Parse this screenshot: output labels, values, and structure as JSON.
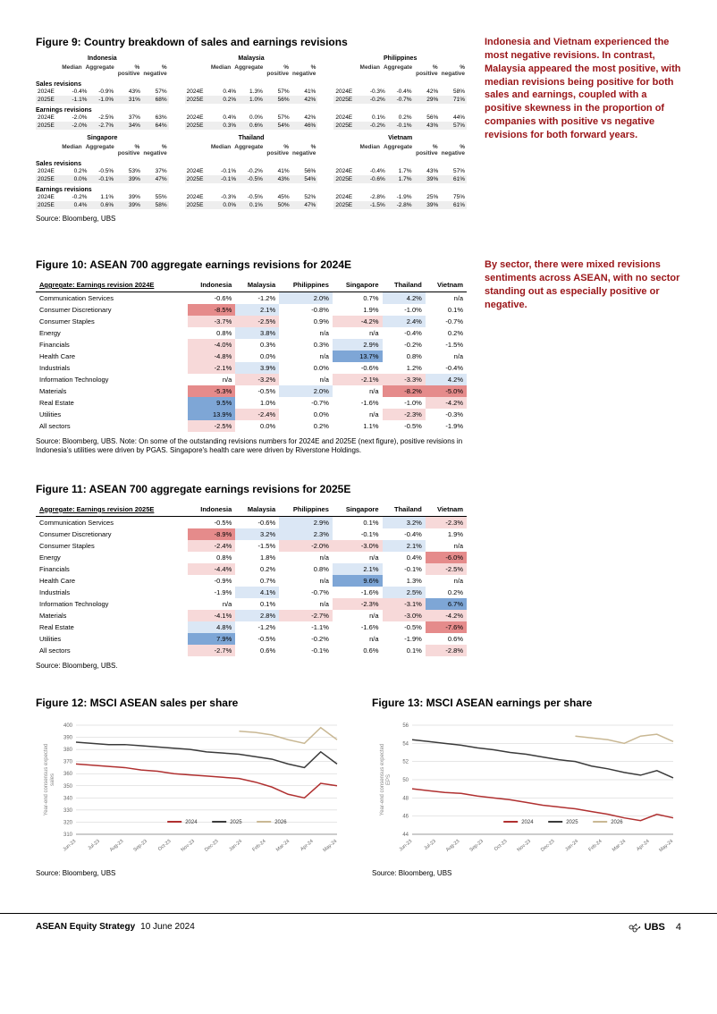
{
  "colors": {
    "sidebar_text": "#9a1518",
    "pos_light": "#dbe7f5",
    "pos_dark": "#7ea6d6",
    "neg_light": "#f7d9d9",
    "neg_dark": "#e58b8b",
    "chart_2024": "#b03030",
    "chart_2025": "#3a3a3a",
    "chart_2026": "#c9b894",
    "grid": "#cccccc",
    "axis_text": "#666666",
    "ylabel": "#888888"
  },
  "sidebar": {
    "note1": "Indonesia and Vietnam experienced the most negative revisions. In contrast, Malaysia appeared the most positive, with median revisions being positive for both sales and earnings, coupled with a positive skewness in the proportion of companies with positive vs negative revisions for both forward years.",
    "note2": "By sector, there were mixed revisions sentiments across ASEAN, with no sector standing out as especially positive or negative."
  },
  "fig9": {
    "title": "Figure 9: Country breakdown of sales and earnings revisions",
    "col_headers": [
      "Median",
      "Aggregate",
      "% positive",
      "% negative"
    ],
    "source": "Source: Bloomberg, UBS",
    "rows_a": {
      "countries": [
        "Indonesia",
        "Malaysia",
        "Philippines"
      ],
      "sales_label": "Sales revisions",
      "earnings_label": "Earnings revisions",
      "sales": {
        "2024E": [
          [
            "-0.4%",
            "-0.9%",
            "43%",
            "57%"
          ],
          [
            "0.4%",
            "1.3%",
            "57%",
            "41%"
          ],
          [
            "-0.3%",
            "-0.4%",
            "42%",
            "58%"
          ]
        ],
        "2025E": [
          [
            "-1.1%",
            "-1.0%",
            "31%",
            "68%"
          ],
          [
            "0.2%",
            "1.0%",
            "56%",
            "42%"
          ],
          [
            "-0.2%",
            "-0.7%",
            "29%",
            "71%"
          ]
        ]
      },
      "earnings": {
        "2024E": [
          [
            "-2.0%",
            "-2.5%",
            "37%",
            "63%"
          ],
          [
            "0.4%",
            "0.0%",
            "57%",
            "42%"
          ],
          [
            "0.1%",
            "0.2%",
            "56%",
            "44%"
          ]
        ],
        "2025E": [
          [
            "-2.0%",
            "-2.7%",
            "34%",
            "64%"
          ],
          [
            "0.3%",
            "0.6%",
            "54%",
            "46%"
          ],
          [
            "-0.2%",
            "-0.1%",
            "43%",
            "57%"
          ]
        ]
      }
    },
    "rows_b": {
      "countries": [
        "Singapore",
        "Thailand",
        "Vietnam"
      ],
      "sales": {
        "2024E": [
          [
            "0.2%",
            "-0.5%",
            "53%",
            "37%"
          ],
          [
            "-0.1%",
            "-0.2%",
            "41%",
            "56%"
          ],
          [
            "-0.4%",
            "1.7%",
            "43%",
            "57%"
          ]
        ],
        "2025E": [
          [
            "0.0%",
            "-0.1%",
            "39%",
            "47%"
          ],
          [
            "-0.1%",
            "-0.5%",
            "43%",
            "54%"
          ],
          [
            "-0.6%",
            "1.7%",
            "39%",
            "61%"
          ]
        ]
      },
      "earnings": {
        "2024E": [
          [
            "-0.2%",
            "1.1%",
            "39%",
            "55%"
          ],
          [
            "-0.3%",
            "-0.5%",
            "45%",
            "52%"
          ],
          [
            "-2.8%",
            "-1.9%",
            "25%",
            "75%"
          ]
        ],
        "2025E": [
          [
            "0.4%",
            "0.6%",
            "39%",
            "58%"
          ],
          [
            "0.0%",
            "0.1%",
            "50%",
            "47%"
          ],
          [
            "-1.5%",
            "-2.8%",
            "39%",
            "61%"
          ]
        ]
      }
    }
  },
  "fig10": {
    "title": "Figure 10: ASEAN 700 aggregate earnings revisions for 2024E",
    "agg_label": "Aggregate: Earnings revision 2024E",
    "countries": [
      "Indonesia",
      "Malaysia",
      "Philippines",
      "Singapore",
      "Thailand",
      "Vietnam"
    ],
    "rows": [
      {
        "name": "Communication Services",
        "vals": [
          "-0.6%",
          "-1.2%",
          "2.0%",
          "0.7%",
          "4.2%",
          "n/a"
        ]
      },
      {
        "name": "Consumer Discretionary",
        "vals": [
          "-8.5%",
          "2.1%",
          "-0.8%",
          "1.9%",
          "-1.0%",
          "0.1%"
        ]
      },
      {
        "name": "Consumer Staples",
        "vals": [
          "-3.7%",
          "-2.5%",
          "0.9%",
          "-4.2%",
          "2.4%",
          "-0.7%"
        ]
      },
      {
        "name": "Energy",
        "vals": [
          "0.8%",
          "3.8%",
          "n/a",
          "n/a",
          "-0.4%",
          "0.2%"
        ]
      },
      {
        "name": "Financials",
        "vals": [
          "-4.0%",
          "0.3%",
          "0.3%",
          "2.9%",
          "-0.2%",
          "-1.5%"
        ]
      },
      {
        "name": "Health Care",
        "vals": [
          "-4.8%",
          "0.0%",
          "n/a",
          "13.7%",
          "0.8%",
          "n/a"
        ]
      },
      {
        "name": "Industrials",
        "vals": [
          "-2.1%",
          "3.9%",
          "0.0%",
          "-0.6%",
          "1.2%",
          "-0.4%"
        ]
      },
      {
        "name": "Information Technology",
        "vals": [
          "n/a",
          "-3.2%",
          "n/a",
          "-2.1%",
          "-3.3%",
          "4.2%"
        ]
      },
      {
        "name": "Materials",
        "vals": [
          "-5.3%",
          "-0.5%",
          "2.0%",
          "n/a",
          "-8.2%",
          "-5.0%"
        ]
      },
      {
        "name": "Real Estate",
        "vals": [
          "9.5%",
          "1.0%",
          "-0.7%",
          "-1.6%",
          "-1.0%",
          "-4.2%"
        ]
      },
      {
        "name": "Utilities",
        "vals": [
          "13.9%",
          "-2.4%",
          "0.0%",
          "n/a",
          "-2.3%",
          "-0.3%"
        ]
      },
      {
        "name": "All sectors",
        "vals": [
          "-2.5%",
          "0.0%",
          "0.2%",
          "1.1%",
          "-0.5%",
          "-1.9%"
        ]
      }
    ],
    "source": "Source: Bloomberg, UBS. Note: On some of the outstanding revisions numbers for 2024E and 2025E (next figure), positive revisions in Indonesia's utilities were driven by PGAS. Singapore's health care were driven by Riverstone Holdings."
  },
  "fig11": {
    "title": "Figure 11: ASEAN 700 aggregate earnings revisions for 2025E",
    "agg_label": "Aggregate: Earnings revision 2025E",
    "countries": [
      "Indonesia",
      "Malaysia",
      "Philippines",
      "Singapore",
      "Thailand",
      "Vietnam"
    ],
    "rows": [
      {
        "name": "Communication Services",
        "vals": [
          "-0.5%",
          "-0.6%",
          "2.9%",
          "0.1%",
          "3.2%",
          "-2.3%"
        ]
      },
      {
        "name": "Consumer Discretionary",
        "vals": [
          "-8.9%",
          "3.2%",
          "2.3%",
          "-0.1%",
          "-0.4%",
          "1.9%"
        ]
      },
      {
        "name": "Consumer Staples",
        "vals": [
          "-2.4%",
          "-1.5%",
          "-2.0%",
          "-3.0%",
          "2.1%",
          "n/a"
        ]
      },
      {
        "name": "Energy",
        "vals": [
          "0.8%",
          "1.8%",
          "n/a",
          "n/a",
          "0.4%",
          "-6.0%"
        ]
      },
      {
        "name": "Financials",
        "vals": [
          "-4.4%",
          "0.2%",
          "0.8%",
          "2.1%",
          "-0.1%",
          "-2.5%"
        ]
      },
      {
        "name": "Health Care",
        "vals": [
          "-0.9%",
          "0.7%",
          "n/a",
          "9.6%",
          "1.3%",
          "n/a"
        ]
      },
      {
        "name": "Industrials",
        "vals": [
          "-1.9%",
          "4.1%",
          "-0.7%",
          "-1.6%",
          "2.5%",
          "0.2%"
        ]
      },
      {
        "name": "Information Technology",
        "vals": [
          "n/a",
          "0.1%",
          "n/a",
          "-2.3%",
          "-3.1%",
          "6.7%"
        ]
      },
      {
        "name": "Materials",
        "vals": [
          "-4.1%",
          "2.8%",
          "-2.7%",
          "n/a",
          "-3.0%",
          "-4.2%"
        ]
      },
      {
        "name": "Real Estate",
        "vals": [
          "4.8%",
          "-1.2%",
          "-1.1%",
          "-1.6%",
          "-0.5%",
          "-7.6%"
        ]
      },
      {
        "name": "Utilities",
        "vals": [
          "7.9%",
          "-0.5%",
          "-0.2%",
          "n/a",
          "-1.9%",
          "0.6%"
        ]
      },
      {
        "name": "All sectors",
        "vals": [
          "-2.7%",
          "0.6%",
          "-0.1%",
          "0.6%",
          "0.1%",
          "-2.8%"
        ]
      }
    ],
    "source": "Source: Bloomberg, UBS."
  },
  "charts": {
    "x_labels": [
      "Jun-23",
      "Jul-23",
      "Aug-23",
      "Sep-23",
      "Oct-23",
      "Nov-23",
      "Dec-23",
      "Jan-24",
      "Feb-24",
      "Mar-24",
      "Apr-24",
      "May-24"
    ],
    "legend": [
      "2024",
      "2025",
      "2026"
    ],
    "fig12": {
      "title": "Figure 12: MSCI ASEAN sales per share",
      "ylabel": "Year-end consensus expected\nsales",
      "ylim": [
        310,
        400
      ],
      "ytick_step": 10,
      "series": {
        "2024": [
          368,
          367,
          366,
          365,
          363,
          362,
          360,
          359,
          358,
          357,
          356,
          353,
          349,
          343,
          340,
          352,
          350
        ],
        "2025": [
          386,
          385,
          384,
          384,
          383,
          382,
          381,
          380,
          378,
          377,
          376,
          374,
          372,
          368,
          365,
          378,
          368
        ],
        "2026": [
          null,
          null,
          null,
          null,
          null,
          null,
          null,
          null,
          null,
          null,
          395,
          394,
          392,
          388,
          385,
          398,
          388
        ]
      },
      "source": "Source: Bloomberg, UBS"
    },
    "fig13": {
      "title": "Figure 13: MSCI ASEAN earnings per share",
      "ylabel": "Year-end consensus expected\nEPS",
      "ylim": [
        44,
        56
      ],
      "ytick_step": 2,
      "series": {
        "2024": [
          49.0,
          48.8,
          48.6,
          48.5,
          48.2,
          48.0,
          47.8,
          47.5,
          47.2,
          47.0,
          46.8,
          46.5,
          46.2,
          45.8,
          45.5,
          46.2,
          45.8
        ],
        "2025": [
          54.4,
          54.2,
          54.0,
          53.8,
          53.5,
          53.3,
          53.0,
          52.8,
          52.5,
          52.2,
          52.0,
          51.5,
          51.2,
          50.8,
          50.5,
          51.0,
          50.2
        ],
        "2026": [
          null,
          null,
          null,
          null,
          null,
          null,
          null,
          null,
          null,
          null,
          54.8,
          54.6,
          54.4,
          54.0,
          54.8,
          55.0,
          54.2
        ]
      },
      "source": "Source: Bloomberg, UBS"
    }
  },
  "footer": {
    "title": "ASEAN Equity Strategy",
    "date": "10 June 2024",
    "brand": "UBS",
    "page": "4"
  }
}
